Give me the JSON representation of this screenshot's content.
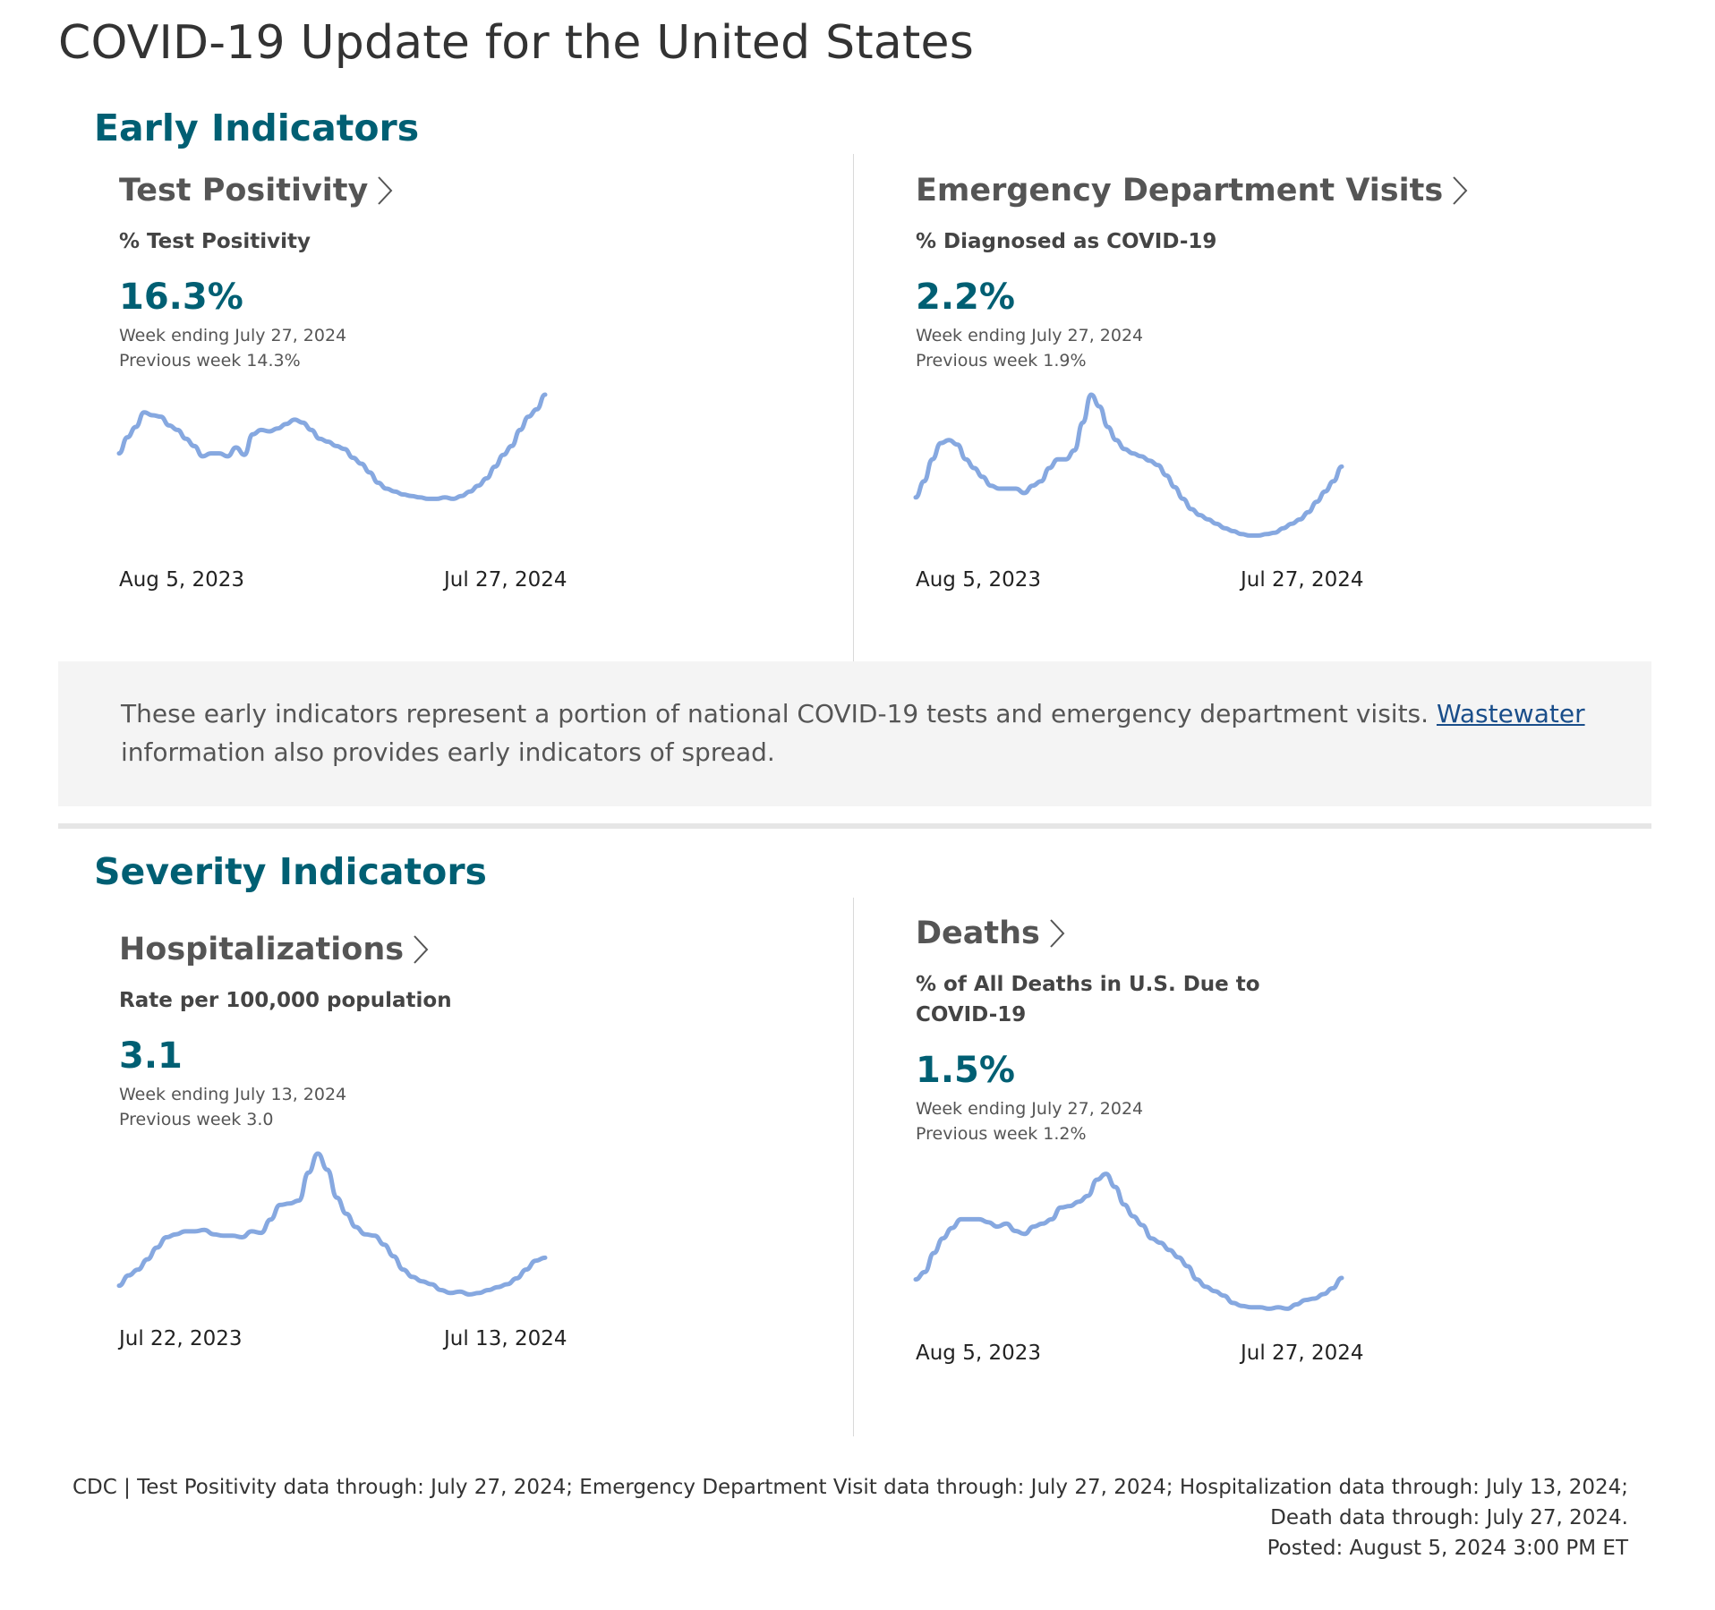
{
  "page": {
    "title": "COVID-19 Update for the United States"
  },
  "sections": {
    "early": {
      "heading": "Early Indicators"
    },
    "severity": {
      "heading": "Severity Indicators"
    }
  },
  "panels": {
    "test_positivity": {
      "title": "Test Positivity",
      "metric_label": "% Test Positivity",
      "value": "16.3%",
      "week_ending": "Week ending July 27, 2024",
      "previous": "Previous week 14.3%"
    },
    "ed_visits": {
      "title": "Emergency Department Visits",
      "metric_label": "% Diagnosed as COVID-19",
      "value": "2.2%",
      "week_ending": "Week ending July 27, 2024",
      "previous": "Previous week 1.9%"
    },
    "hospitalizations": {
      "title": "Hospitalizations",
      "metric_label": "Rate per 100,000 population",
      "value": "3.1",
      "week_ending": "Week ending July 13, 2024",
      "previous": "Previous week 3.0"
    },
    "deaths": {
      "title": "Deaths",
      "metric_label_line1": "% of All Deaths in U.S. Due to",
      "metric_label_line2": "COVID-19",
      "value": "1.5%",
      "week_ending": "Week ending July 27, 2024",
      "previous": "Previous week 1.2%"
    }
  },
  "note": {
    "text_before": "These early indicators represent a portion of national COVID-19 tests and emergency department visits. ",
    "link_text": "Wastewater",
    "text_after": " information also provides early indicators of spread."
  },
  "footer": {
    "line1": "CDC | Test Positivity data through: July 27, 2024; Emergency Department Visit data through: July 27, 2024; Hospitalization data through: July 13, 2024;",
    "line2": "Death data through: July 27, 2024.",
    "line3": "Posted: August 5, 2024 3:00 PM ET"
  },
  "colors": {
    "accent": "#005f73",
    "line": "#86a8e0",
    "link": "#1a4e8a"
  },
  "icons": {
    "title_arrow": "chevron-right-icon"
  },
  "chart_data": [
    {
      "id": "test_positivity",
      "type": "line",
      "x_start": "Aug 5, 2023",
      "x_end": "Jul 27, 2024",
      "ylim": [
        0,
        100
      ],
      "values": [
        60,
        71,
        78,
        88,
        86,
        85,
        79,
        76,
        70,
        65,
        58,
        60,
        60,
        58,
        64,
        59,
        73,
        76,
        75,
        77,
        80,
        83,
        81,
        76,
        70,
        68,
        65,
        63,
        57,
        53,
        47,
        40,
        36,
        34,
        32,
        31,
        30,
        29,
        29,
        30,
        29,
        31,
        34,
        38,
        43,
        51,
        59,
        65,
        76,
        85,
        90,
        100
      ],
      "title": "",
      "xlabel": "",
      "ylabel": "",
      "grid": false
    },
    {
      "id": "ed_visits",
      "type": "line",
      "x_start": "Aug 5, 2023",
      "x_end": "Jul 27, 2024",
      "ylim": [
        0,
        100
      ],
      "values": [
        30,
        41,
        56,
        67,
        69,
        66,
        56,
        50,
        44,
        38,
        36,
        36,
        36,
        33,
        38,
        41,
        50,
        56,
        56,
        62,
        81,
        100,
        92,
        78,
        69,
        63,
        60,
        58,
        55,
        52,
        45,
        37,
        29,
        22,
        18,
        15,
        12,
        9,
        7,
        5,
        4,
        4,
        5,
        6,
        9,
        12,
        15,
        20,
        27,
        34,
        41,
        51
      ],
      "title": "",
      "xlabel": "",
      "ylabel": "",
      "grid": false
    },
    {
      "id": "hospitalizations",
      "type": "line",
      "x_start": "Jul 22, 2023",
      "x_end": "Jul 13, 2024",
      "ylim": [
        0,
        100
      ],
      "values": [
        10,
        17,
        21,
        28,
        36,
        43,
        45,
        47,
        47,
        48,
        45,
        44,
        44,
        43,
        47,
        46,
        55,
        65,
        66,
        68,
        87,
        100,
        89,
        70,
        59,
        50,
        45,
        44,
        38,
        30,
        21,
        16,
        13,
        11,
        7,
        5,
        6,
        4,
        5,
        7,
        9,
        11,
        15,
        21,
        27,
        29
      ],
      "title": "",
      "xlabel": "",
      "ylabel": "",
      "grid": false
    },
    {
      "id": "deaths",
      "type": "line",
      "x_start": "Aug 5, 2023",
      "x_end": "Jul 27, 2024",
      "ylim": [
        0,
        100
      ],
      "values": [
        24,
        29,
        42,
        52,
        59,
        65,
        65,
        65,
        63,
        60,
        62,
        57,
        55,
        60,
        62,
        65,
        73,
        74,
        77,
        81,
        92,
        96,
        87,
        75,
        67,
        61,
        52,
        49,
        44,
        39,
        33,
        24,
        19,
        16,
        13,
        8,
        6,
        5,
        5,
        4,
        5,
        4,
        7,
        10,
        11,
        14,
        18,
        25
      ],
      "title": "",
      "xlabel": "",
      "ylabel": "",
      "grid": false
    }
  ]
}
